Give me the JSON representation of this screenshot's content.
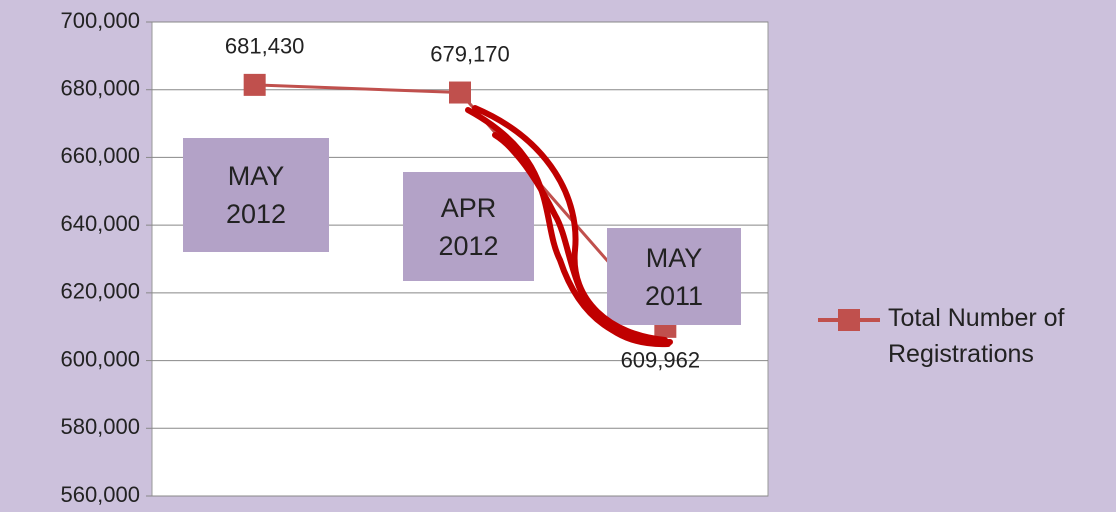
{
  "chart_data": {
    "type": "line",
    "categories": [
      "MAY 2012",
      "APR 2012",
      "MAY 2011"
    ],
    "series": [
      {
        "name": "Total Number of Registrations",
        "color": "#c0504d",
        "values": [
          681430,
          679170,
          609962
        ],
        "value_labels": [
          "681,430",
          "679,170",
          "609,962"
        ]
      }
    ],
    "ylim": [
      560000,
      700000
    ],
    "yticks": [
      {
        "value": 560000,
        "label": "560,000"
      },
      {
        "value": 580000,
        "label": "580,000"
      },
      {
        "value": 600000,
        "label": "600,000"
      },
      {
        "value": 620000,
        "label": "620,000"
      },
      {
        "value": 640000,
        "label": "640,000"
      },
      {
        "value": 660000,
        "label": "660,000"
      },
      {
        "value": 680000,
        "label": "680,000"
      },
      {
        "value": 700000,
        "label": "700,000"
      }
    ],
    "grid": true,
    "legend": "right"
  }
}
